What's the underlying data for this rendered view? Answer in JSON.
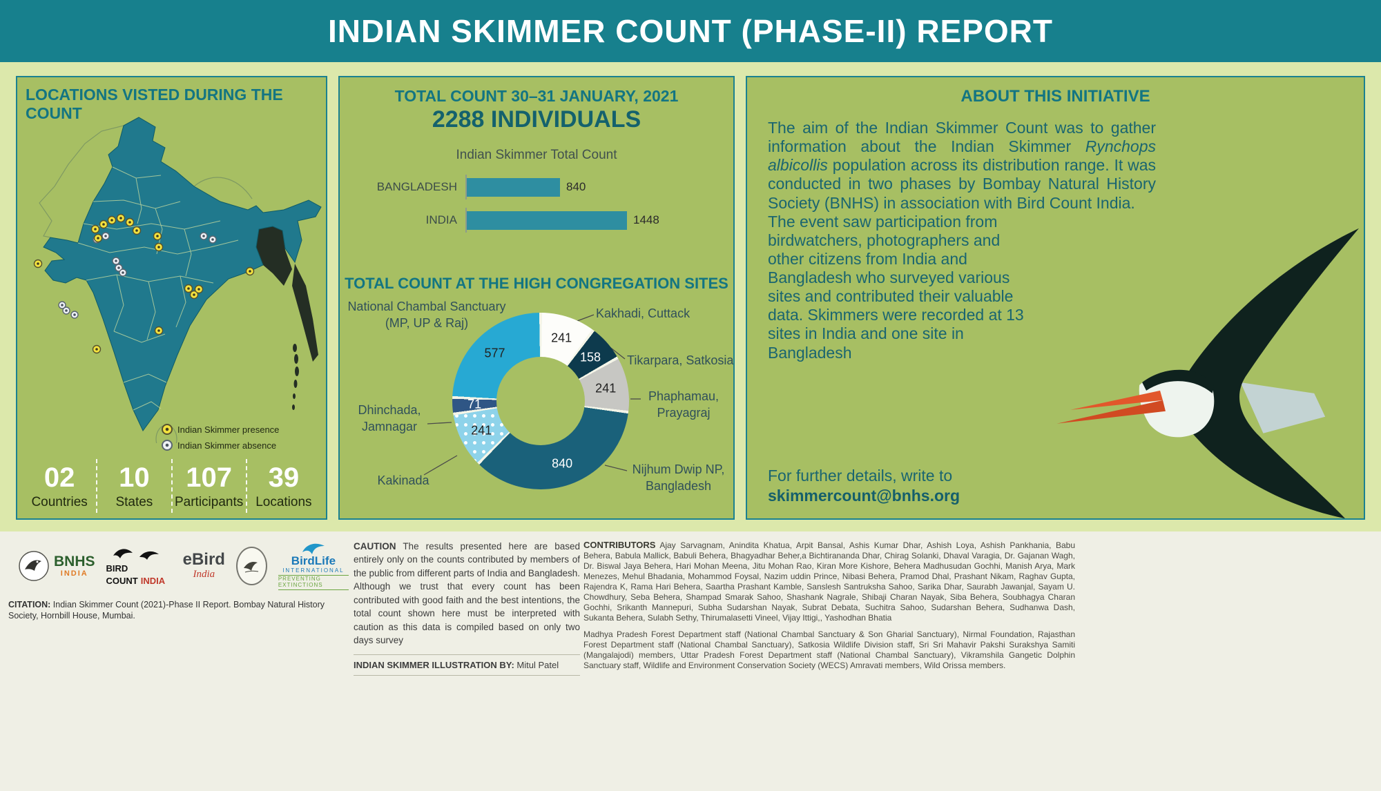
{
  "header": {
    "title": "INDIAN SKIMMER COUNT (PHASE-II) REPORT"
  },
  "locations_panel": {
    "title": "LOCATIONS VISTED DURING THE COUNT",
    "legend": [
      {
        "label": "Indian Skimmer presence",
        "color": "#f3e23e"
      },
      {
        "label": "Indian Skimmer absence",
        "color": "#eef1f6"
      }
    ],
    "stats": [
      {
        "value": "02",
        "label": "Countries"
      },
      {
        "value": "10",
        "label": "States"
      },
      {
        "value": "107",
        "label": "Participants"
      },
      {
        "value": "39",
        "label": "Locations"
      }
    ]
  },
  "count_panel": {
    "title": "TOTAL COUNT 30–31 JANUARY, 2021",
    "subtitle": "2288 INDIVIDUALS",
    "congregation_title": "TOTAL COUNT AT THE HIGH CONGREGATION SITES"
  },
  "chart_data": [
    {
      "type": "bar",
      "orientation": "horizontal",
      "title": "Indian Skimmer Total Count",
      "categories": [
        "BANGLADESH",
        "INDIA"
      ],
      "values": [
        840,
        1448
      ],
      "bar_color": "#2e8ea1",
      "xlim": [
        0,
        1500
      ],
      "grid": false,
      "legend_position": "none"
    },
    {
      "type": "pie",
      "donut": true,
      "title": "TOTAL COUNT AT THE HIGH CONGREGATION SITES",
      "segments": [
        {
          "label": "Kakhadi, Cuttack",
          "line1": "Kakhadi, Cuttack",
          "line2": "",
          "value": 241,
          "color": "#fdfdfa",
          "text_color": "#222222"
        },
        {
          "label": "Tikarpara, Satkosia",
          "line1": "Tikarpara, Satkosia",
          "line2": "",
          "value": 158,
          "color": "#0d3a4d",
          "text_color": "#ffffff"
        },
        {
          "label": "Phaphamau, Prayagraj",
          "line1": "Phaphamau,",
          "line2": "Prayagraj",
          "value": 241,
          "color": "#c7c7c3",
          "text_color": "#222222"
        },
        {
          "label": "Nijhum Dwip NP, Bangladesh",
          "line1": "Nijhum Dwip NP,",
          "line2": "Bangladesh",
          "value": 840,
          "color": "#1a617a",
          "text_color": "#ffffff"
        },
        {
          "label": "Kakinada",
          "line1": "Kakinada",
          "line2": "",
          "value": 241,
          "color": "#8ed3ea",
          "pattern": "dots",
          "text_color": "#222222"
        },
        {
          "label": "Dhinchada, Jamnagar",
          "line1": "Dhinchada,",
          "line2": "Jamnagar",
          "value": 71,
          "color": "#2f5685",
          "text_color": "#ffffff"
        },
        {
          "label": "National Chambal Sanctuary (MP, UP & Raj)",
          "line1": "National Chambal Sanctuary",
          "line2": "(MP, UP & Raj)",
          "value": 577,
          "color": "#27a9d3",
          "text_color": "#222222"
        }
      ]
    }
  ],
  "about_panel": {
    "title": "ABOUT THIS INITIATIVE",
    "p1_before": "The aim of the Indian Skimmer Count was to gather information about the Indian Skimmer ",
    "p1_italic": "Rynchops albicollis",
    "p1_after": " population across its distribution range. It was conducted in two phases by Bombay Natural History Society (BNHS) in association with Bird Count India.",
    "p2": "The event saw participation from birdwatchers, photographers and other citizens from India and Bangladesh who surveyed various sites and contributed their valuable data.  Skimmers were recorded at 13 sites in India and one site in Bangladesh",
    "contact_line": "For further details, write to",
    "contact_email": "skimmercount@bnhs.org"
  },
  "footer": {
    "logos": [
      {
        "name": "BNHS India",
        "text1": "BNHS",
        "text2": "INDIA"
      },
      {
        "name": "Bird Count India",
        "text1": "BIRD COUNT",
        "text2": "INDIA"
      },
      {
        "name": "eBird India",
        "text1": "eBird",
        "text2": "India"
      },
      {
        "name": "bird society emblem",
        "text1": "",
        "text2": ""
      },
      {
        "name": "BirdLife International",
        "text1": "BirdLife",
        "text2": "INTERNATIONAL",
        "text3": "PREVENTING EXTINCTIONS"
      }
    ],
    "citation_label": "CITATION:",
    "citation_text": " Indian Skimmer Count (2021)-Phase II Report. Bombay Natural History Society, Hornbill House, Mumbai.",
    "caution_label": "CAUTION",
    "caution_text": " The results presented here are based entirely only on the counts contributed by members of the public from different parts of India and Bangladesh. Although we trust that every count has been contributed with good faith and the best intentions, the total count shown here must be interpreted with caution as this data is compiled based on only two days survey",
    "illustration_label": "INDIAN SKIMMER ILLUSTRATION BY:",
    "illustration_credit": " Mitul Patel",
    "contributors_label": "CONTRIBUTORS",
    "contributors_text": " Ajay Sarvagnam, Anindita Khatua, Arpit Bansal, Ashis Kumar Dhar, Ashish Loya, Ashish Pankhania, Babu Behera, Babula Mallick, Babuli Behera, Bhagyadhar Beher,a Bichtirananda Dhar, Chirag Solanki, Dhaval Varagia, Dr. Gajanan Wagh, Dr. Biswal Jaya Behera, Hari Mohan Meena, Jitu Mohan Rao, Kiran More Kishore, Behera Madhusudan Gochhi, Manish Arya, Mark Menezes, Mehul Bhadania, Mohammod Foysal, Nazim uddin Prince, Nibasi Behera, Pramod Dhal, Prashant Nikam, Raghav Gupta, Rajendra K, Rama Hari Behera, Saartha Prashant Kamble, Sanslesh Santruksha Sahoo, Sarika Dhar, Saurabh Jawanjal, Sayam U. Chowdhury, Seba Behera, Shampad Smarak Sahoo, Shashank Nagrale, Shibaji Charan Nayak, Siba Behera, Soubhagya Charan Gochhi, Srikanth Mannepuri, Subha Sudarshan Nayak, Subrat Debata, Suchitra Sahoo, Sudarshan Behera, Sudhanwa Dash, Sukanta Behera, Sulabh Sethy, Thirumalasetti Vineel, Vijay Ittigi,, Yashodhan Bhatia",
    "contributors_text2": "Madhya Pradesh Forest Department staff (National Chambal Sanctuary & Son Gharial Sanctuary), Nirmal Foundation, Rajasthan Forest Department staff (National Chambal Sanctuary), Satkosia Wildlife Division staff, Sri Sri Mahavir Pakshi Surakshya Samiti (Mangalajodi) members, Uttar Pradesh Forest Department staff (National Chambal Sanctuary), Vikramshila Gangetic Dolphin Sanctuary staff, Wildlife and Environment Conservation Society (WECS) Amravati members, Wild Orissa members."
  }
}
